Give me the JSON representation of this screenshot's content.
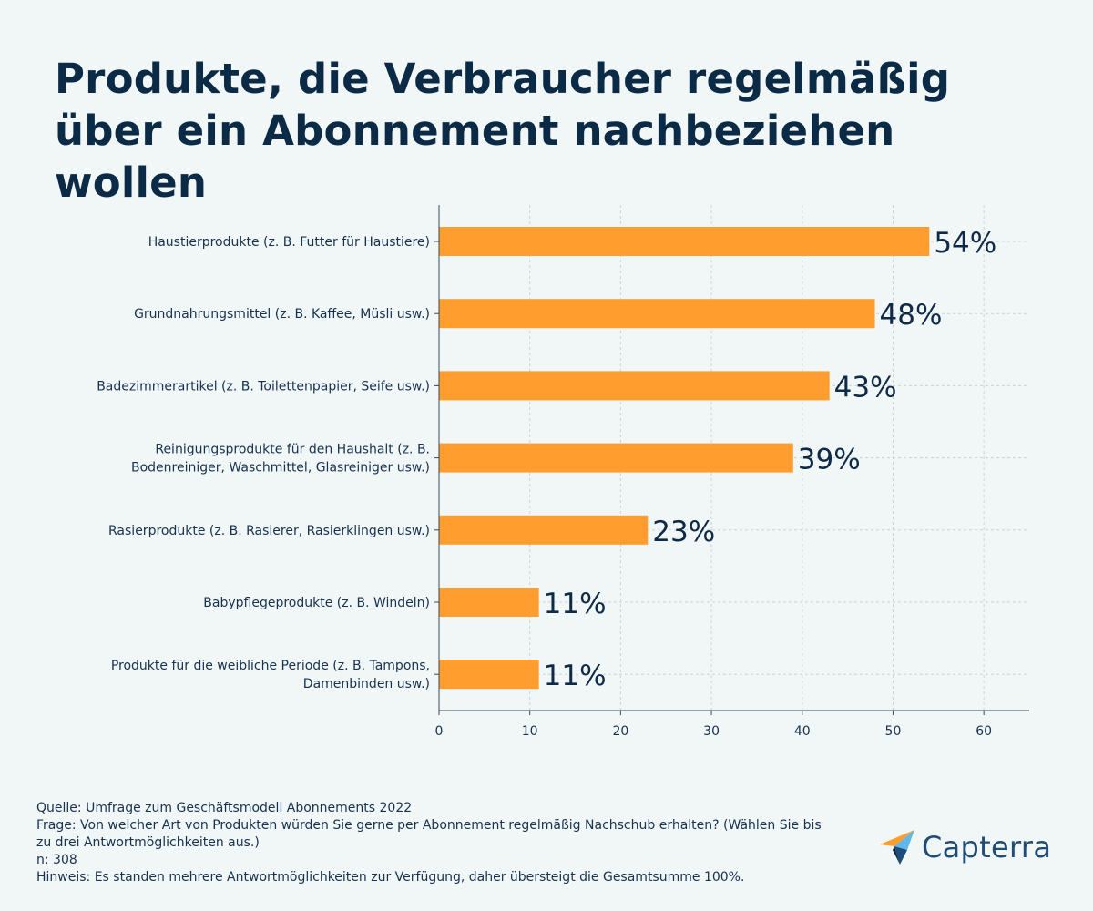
{
  "chart_data": {
    "type": "bar",
    "orientation": "horizontal",
    "title": "Produkte, die Verbraucher regelmäßig über ein Abonnement nachbeziehen wollen",
    "categories": [
      "Haustierprodukte (z. B. Futter für Haustiere)",
      "Grundnahrungsmittel (z. B. Kaffee, Müsli usw.)",
      "Badezimmerartikel (z. B. Toilettenpapier, Seife usw.)",
      "Reinigungsprodukte für den Haushalt (z. B. Bodenreiniger, Waschmittel, Glasreiniger usw.)",
      "Rasierprodukte (z. B. Rasierer, Rasierklingen usw.)",
      "Babypflegeprodukte (z. B. Windeln)",
      "Produkte für die weibliche Periode (z. B. Tampons, Damenbinden usw.)"
    ],
    "category_lines": [
      [
        "Haustierprodukte (z. B. Futter für Haustiere)"
      ],
      [
        "Grundnahrungsmittel (z. B. Kaffee, Müsli usw.)"
      ],
      [
        "Badezimmerartikel (z. B. Toilettenpapier, Seife usw.)"
      ],
      [
        "Reinigungsprodukte für den Haushalt (z. B.",
        "Bodenreiniger, Waschmittel, Glasreiniger usw.)"
      ],
      [
        "Rasierprodukte (z. B. Rasierer, Rasierklingen usw.)"
      ],
      [
        "Babypflegeprodukte (z. B. Windeln)"
      ],
      [
        "Produkte für die weibliche Periode (z. B. Tampons,",
        "Damenbinden usw.)"
      ]
    ],
    "values": [
      54,
      48,
      43,
      39,
      23,
      11,
      11
    ],
    "value_labels": [
      "54%",
      "48%",
      "43%",
      "39%",
      "23%",
      "11%",
      "11%"
    ],
    "xlim": [
      0,
      65
    ],
    "xticks": [
      0,
      10,
      20,
      30,
      40,
      50,
      60
    ],
    "grid": true,
    "bar_color": "#ff9d2e",
    "xlabel": "",
    "ylabel": ""
  },
  "footer": {
    "source": "Quelle: Umfrage zum Geschäftsmodell Abonnements 2022",
    "question": "Frage: Von welcher Art von Produkten würden Sie gerne per Abonnement regelmäßig Nachschub erhalten? (Wählen Sie bis zu drei Antwortmöglichkeiten aus.)",
    "n": "n: 308",
    "note": "Hinweis: Es standen mehrere Antwortmöglichkeiten zur Verfügung, daher übersteigt die Gesamtsumme 100%."
  },
  "logo": {
    "text": "Capterra",
    "colors": [
      "#ff9d2e",
      "#5fb8e8",
      "#1f4d7a",
      "#0b2a46"
    ]
  },
  "colors": {
    "background": "#f1f6f7",
    "text": "#0e2a47",
    "grid": "#c9d3d8"
  }
}
